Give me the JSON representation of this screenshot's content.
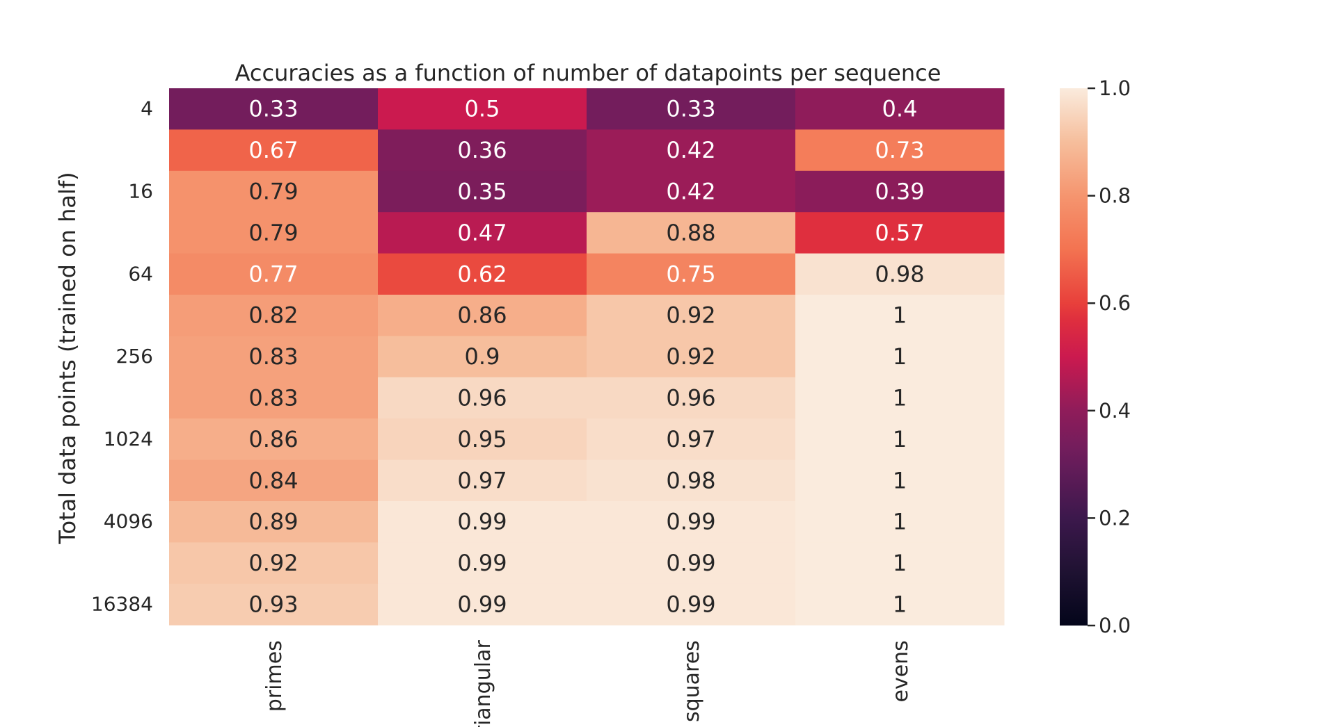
{
  "chart_data": {
    "type": "heatmap",
    "title": "Accuracies as a function of number of datapoints per sequence",
    "xlabel": "",
    "ylabel": "Total data points (trained on half)",
    "columns": [
      "primes",
      "triangular",
      "squares",
      "evens"
    ],
    "row_tick_labels": [
      "4",
      "",
      "16",
      "",
      "64",
      "",
      "256",
      "",
      "1024",
      "",
      "4096",
      "",
      "16384"
    ],
    "values": [
      [
        0.33,
        0.5,
        0.33,
        0.4
      ],
      [
        0.67,
        0.36,
        0.42,
        0.73
      ],
      [
        0.79,
        0.35,
        0.42,
        0.39
      ],
      [
        0.79,
        0.47,
        0.88,
        0.57
      ],
      [
        0.77,
        0.62,
        0.75,
        0.98
      ],
      [
        0.82,
        0.86,
        0.92,
        1
      ],
      [
        0.83,
        0.9,
        0.92,
        1
      ],
      [
        0.83,
        0.96,
        0.96,
        1
      ],
      [
        0.86,
        0.95,
        0.97,
        1
      ],
      [
        0.84,
        0.97,
        0.98,
        1
      ],
      [
        0.89,
        0.99,
        0.99,
        1
      ],
      [
        0.92,
        0.99,
        0.99,
        1
      ],
      [
        0.93,
        0.99,
        0.99,
        1
      ]
    ],
    "vmin": 0.0,
    "vmax": 1.0,
    "colormap": "rocket",
    "annotated": true,
    "colorbar": {
      "ticks": [
        0.0,
        0.2,
        0.4,
        0.6,
        0.8,
        1.0
      ],
      "tick_labels": [
        "0.0",
        "0.2",
        "0.4",
        "0.6",
        "0.8",
        "1.0"
      ],
      "placement": "right"
    },
    "grid": false
  }
}
